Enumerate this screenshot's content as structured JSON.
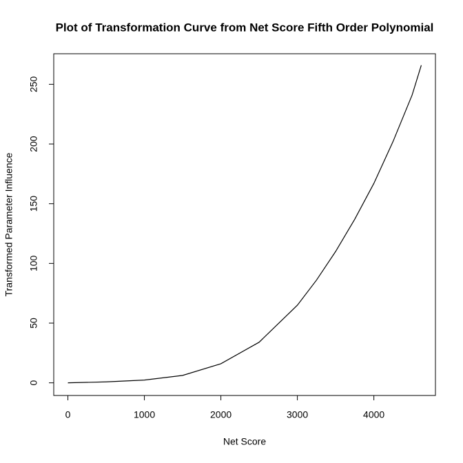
{
  "chart_data": {
    "type": "line",
    "title": "Plot of Transformation Curve from Net Score Fifth Order Polynomial",
    "x_label": "Net Score",
    "y_label": "Transformed Parameter Influence",
    "x": [
      0,
      500,
      1000,
      1500,
      2000,
      2500,
      3000,
      3250,
      3500,
      3750,
      4000,
      4250,
      4500,
      4620
    ],
    "series": [
      {
        "color": "#000000",
        "values": [
          0,
          0.8,
          2.3,
          6.2,
          16,
          34,
          65,
          86,
          110,
          137,
          167,
          202,
          241,
          266
        ]
      }
    ],
    "xlim": [
      -185,
      4805
    ],
    "xticks": [
      0,
      1000,
      2000,
      3000,
      4000
    ],
    "ylim": [
      -10.6,
      275.6
    ],
    "yticks": [
      0,
      50,
      100,
      150,
      200,
      250
    ]
  }
}
